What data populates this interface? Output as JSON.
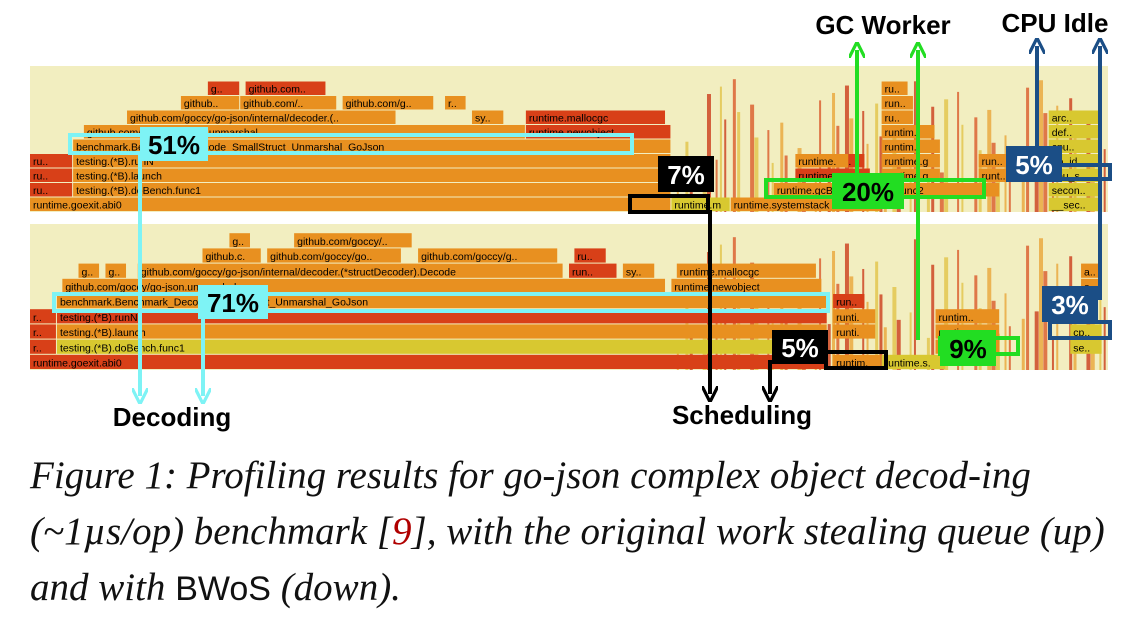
{
  "colors": {
    "background": "#f2eec0",
    "bar_orange": "#e89020",
    "bar_red": "#d84018",
    "bar_yellow": "#d8c830",
    "cyan": "#7ef3f5",
    "green": "#22dd22",
    "navy": "#1b4e86",
    "black": "#000000"
  },
  "top_graph": {
    "frames": [
      {
        "label": "runtime.goexit.abi0",
        "row": 0,
        "x0": 0.0,
        "x1": 0.595,
        "c": "orange"
      },
      {
        "label": "ru..",
        "row": 1,
        "x0": 0.0,
        "x1": 0.04,
        "c": "red"
      },
      {
        "label": "testing.(*B).doBench.func1",
        "row": 1,
        "x0": 0.04,
        "x1": 0.595,
        "c": "orange"
      },
      {
        "label": "ru..",
        "row": 2,
        "x0": 0.0,
        "x1": 0.04,
        "c": "red"
      },
      {
        "label": "testing.(*B).launch",
        "row": 2,
        "x0": 0.04,
        "x1": 0.595,
        "c": "orange"
      },
      {
        "label": "ru..",
        "row": 3,
        "x0": 0.0,
        "x1": 0.04,
        "c": "red"
      },
      {
        "label": "testing.(*B).runN",
        "row": 3,
        "x0": 0.04,
        "x1": 0.595,
        "c": "orange"
      },
      {
        "label": "benchmark.Benchmark_Decode_SmallStruct_Unmarshal_GoJson",
        "row": 4,
        "x0": 0.04,
        "x1": 0.595,
        "c": "orange"
      },
      {
        "label": "github.com/goccy/go-json.unmarshal",
        "row": 5,
        "x0": 0.05,
        "x1": 0.46,
        "c": "orange"
      },
      {
        "label": "runtime.newobject",
        "row": 5,
        "x0": 0.46,
        "x1": 0.595,
        "c": "red"
      },
      {
        "label": "github.com/goccy/go-json/internal/decoder.(..",
        "row": 6,
        "x0": 0.09,
        "x1": 0.34,
        "c": "orange"
      },
      {
        "label": "sy..",
        "row": 6,
        "x0": 0.41,
        "x1": 0.44,
        "c": "orange"
      },
      {
        "label": "runtime.mallocgc",
        "row": 6,
        "x0": 0.46,
        "x1": 0.59,
        "c": "red"
      },
      {
        "label": "github..",
        "row": 7,
        "x0": 0.14,
        "x1": 0.195,
        "c": "orange"
      },
      {
        "label": "github.com/..",
        "row": 7,
        "x0": 0.195,
        "x1": 0.285,
        "c": "orange"
      },
      {
        "label": "github.com/g..",
        "row": 7,
        "x0": 0.29,
        "x1": 0.375,
        "c": "orange"
      },
      {
        "label": "r..",
        "row": 7,
        "x0": 0.385,
        "x1": 0.405,
        "c": "orange"
      },
      {
        "label": "g..",
        "row": 8,
        "x0": 0.165,
        "x1": 0.195,
        "c": "red"
      },
      {
        "label": "github.com..",
        "row": 8,
        "x0": 0.2,
        "x1": 0.275,
        "c": "red"
      },
      {
        "label": "runtime.m..",
        "row": 0,
        "x0": 0.595,
        "x1": 0.65,
        "c": "yellow"
      },
      {
        "label": "runtime.systemstack",
        "row": 0,
        "x0": 0.65,
        "x1": 0.79,
        "c": "orange"
      },
      {
        "label": "runtime.gcBgMarkWorker.func2",
        "row": 1,
        "x0": 0.69,
        "x1": 0.9,
        "c": "orange"
      },
      {
        "label": "ru..",
        "row": 2,
        "x0": 0.725,
        "x1": 0.755,
        "c": "red"
      },
      {
        "label": "runtime.gc..",
        "row": 2,
        "x0": 0.79,
        "x1": 0.845,
        "c": "orange"
      },
      {
        "label": "runt..",
        "row": 2,
        "x0": 0.88,
        "x1": 0.92,
        "c": "orange"
      },
      {
        "label": "ru..",
        "row": 3,
        "x0": 0.745,
        "x1": 0.775,
        "c": "red"
      },
      {
        "label": "runtime.gcD..",
        "row": 3,
        "x0": 0.79,
        "x1": 0.845,
        "c": "orange"
      },
      {
        "label": "run..",
        "row": 3,
        "x0": 0.88,
        "x1": 0.915,
        "c": "orange"
      },
      {
        "label": "runtim..",
        "row": 4,
        "x0": 0.79,
        "x1": 0.845,
        "c": "orange"
      },
      {
        "label": "runtim..",
        "row": 5,
        "x0": 0.79,
        "x1": 0.84,
        "c": "orange"
      },
      {
        "label": "ru..",
        "row": 6,
        "x0": 0.79,
        "x1": 0.82,
        "c": "orange"
      },
      {
        "label": "run..",
        "row": 7,
        "x0": 0.79,
        "x1": 0.82,
        "c": "orange"
      },
      {
        "label": "ru..",
        "row": 8,
        "x0": 0.79,
        "x1": 0.815,
        "c": "orange"
      },
      {
        "label": "runtime.m..",
        "row": 2,
        "x0": 0.71,
        "x1": 0.78,
        "c": "red"
      },
      {
        "label": "runtime.gc..",
        "row": 3,
        "x0": 0.71,
        "x1": 0.76,
        "c": "orange"
      },
      {
        "label": "__sec..",
        "row": 0,
        "x0": 0.945,
        "x1": 0.995,
        "c": "yellow"
      },
      {
        "label": "secon..",
        "row": 1,
        "x0": 0.945,
        "x1": 0.995,
        "c": "yellow"
      },
      {
        "label": "cpu_s..",
        "row": 2,
        "x0": 0.945,
        "x1": 0.995,
        "c": "yellow"
      },
      {
        "label": "do_id..",
        "row": 3,
        "x0": 0.945,
        "x1": 0.995,
        "c": "yellow"
      },
      {
        "label": "cpu..",
        "row": 4,
        "x0": 0.945,
        "x1": 0.995,
        "c": "yellow"
      },
      {
        "label": "def..",
        "row": 5,
        "x0": 0.945,
        "x1": 0.995,
        "c": "yellow"
      },
      {
        "label": "arc..",
        "row": 6,
        "x0": 0.945,
        "x1": 0.995,
        "c": "yellow"
      }
    ]
  },
  "bottom_graph": {
    "frames": [
      {
        "label": "runtime.goexit.abi0",
        "row": 0,
        "x0": 0.0,
        "x1": 0.74,
        "c": "red"
      },
      {
        "label": "r..",
        "row": 1,
        "x0": 0.0,
        "x1": 0.025,
        "c": "red"
      },
      {
        "label": "testing.(*B).doBench.func1",
        "row": 1,
        "x0": 0.025,
        "x1": 0.74,
        "c": "yellow"
      },
      {
        "label": "r..",
        "row": 2,
        "x0": 0.0,
        "x1": 0.025,
        "c": "red"
      },
      {
        "label": "testing.(*B).launch",
        "row": 2,
        "x0": 0.025,
        "x1": 0.74,
        "c": "orange"
      },
      {
        "label": "r..",
        "row": 3,
        "x0": 0.0,
        "x1": 0.025,
        "c": "red"
      },
      {
        "label": "testing.(*B).runN",
        "row": 3,
        "x0": 0.025,
        "x1": 0.74,
        "c": "red"
      },
      {
        "label": "benchmark.Benchmark_Decode_SmallStruct_Unmarshal_GoJson",
        "row": 4,
        "x0": 0.025,
        "x1": 0.74,
        "c": "orange"
      },
      {
        "label": "github.com/goccy/go-json.unmarshal",
        "row": 5,
        "x0": 0.03,
        "x1": 0.59,
        "c": "orange"
      },
      {
        "label": "runtime.newobject",
        "row": 5,
        "x0": 0.595,
        "x1": 0.735,
        "c": "orange"
      },
      {
        "label": "g..",
        "row": 6,
        "x0": 0.045,
        "x1": 0.065,
        "c": "orange"
      },
      {
        "label": "g..",
        "row": 6,
        "x0": 0.07,
        "x1": 0.09,
        "c": "orange"
      },
      {
        "label": "github.com/goccy/go-json/internal/decoder.(*structDecoder).Decode",
        "row": 6,
        "x0": 0.1,
        "x1": 0.495,
        "c": "orange"
      },
      {
        "label": "run..",
        "row": 6,
        "x0": 0.5,
        "x1": 0.545,
        "c": "red"
      },
      {
        "label": "sy..",
        "row": 6,
        "x0": 0.55,
        "x1": 0.58,
        "c": "orange"
      },
      {
        "label": "runtime.mallocgc",
        "row": 6,
        "x0": 0.6,
        "x1": 0.73,
        "c": "orange"
      },
      {
        "label": "github.c..",
        "row": 7,
        "x0": 0.16,
        "x1": 0.215,
        "c": "orange"
      },
      {
        "label": "github.com/goccy/go..",
        "row": 7,
        "x0": 0.22,
        "x1": 0.345,
        "c": "orange"
      },
      {
        "label": "github.com/goccy/g..",
        "row": 7,
        "x0": 0.36,
        "x1": 0.49,
        "c": "orange"
      },
      {
        "label": "ru..",
        "row": 7,
        "x0": 0.505,
        "x1": 0.535,
        "c": "red"
      },
      {
        "label": "g..",
        "row": 8,
        "x0": 0.185,
        "x1": 0.205,
        "c": "orange"
      },
      {
        "label": "github.com/goccy/..",
        "row": 8,
        "x0": 0.245,
        "x1": 0.355,
        "c": "orange"
      },
      {
        "label": "runtim..",
        "row": 0,
        "x0": 0.745,
        "x1": 0.79,
        "c": "orange"
      },
      {
        "label": "runtime.s..",
        "row": 0,
        "x0": 0.79,
        "x1": 0.85,
        "c": "yellow"
      },
      {
        "label": "runti..",
        "row": 2,
        "x0": 0.745,
        "x1": 0.785,
        "c": "orange"
      },
      {
        "label": "runti..",
        "row": 3,
        "x0": 0.745,
        "x1": 0.785,
        "c": "orange"
      },
      {
        "label": "run..",
        "row": 4,
        "x0": 0.745,
        "x1": 0.775,
        "c": "red"
      },
      {
        "label": "runtim..",
        "row": 1,
        "x0": 0.84,
        "x1": 0.9,
        "c": "orange"
      },
      {
        "label": "runtim..",
        "row": 2,
        "x0": 0.84,
        "x1": 0.9,
        "c": "orange"
      },
      {
        "label": "runtim..",
        "row": 3,
        "x0": 0.84,
        "x1": 0.9,
        "c": "orange"
      },
      {
        "label": "se..",
        "row": 1,
        "x0": 0.965,
        "x1": 0.995,
        "c": "yellow"
      },
      {
        "label": "cp..",
        "row": 2,
        "x0": 0.965,
        "x1": 0.995,
        "c": "yellow"
      },
      {
        "label": "a..",
        "row": 5,
        "x0": 0.975,
        "x1": 0.995,
        "c": "orange"
      },
      {
        "label": "a..",
        "row": 6,
        "x0": 0.975,
        "x1": 0.995,
        "c": "orange"
      }
    ]
  },
  "percentages": {
    "top_decoding": "51%",
    "bottom_decoding": "71%",
    "top_scheduling": "7%",
    "bottom_scheduling": "5%",
    "top_gc": "20%",
    "bottom_gc": "9%",
    "top_idle": "5%",
    "bottom_idle": "3%"
  },
  "labels": {
    "gc_worker": "GC Worker",
    "cpu_idle": "CPU Idle",
    "decoding": "Decoding",
    "scheduling": "Scheduling"
  },
  "caption": {
    "part1": "Figure 1: Profiling results for go-json complex object decod-ing (~1µs/op) benchmark [",
    "ref": "9",
    "part2": "], with the original work stealing queue (up) and with ",
    "system": "BWoS",
    "part3": " (down)."
  }
}
